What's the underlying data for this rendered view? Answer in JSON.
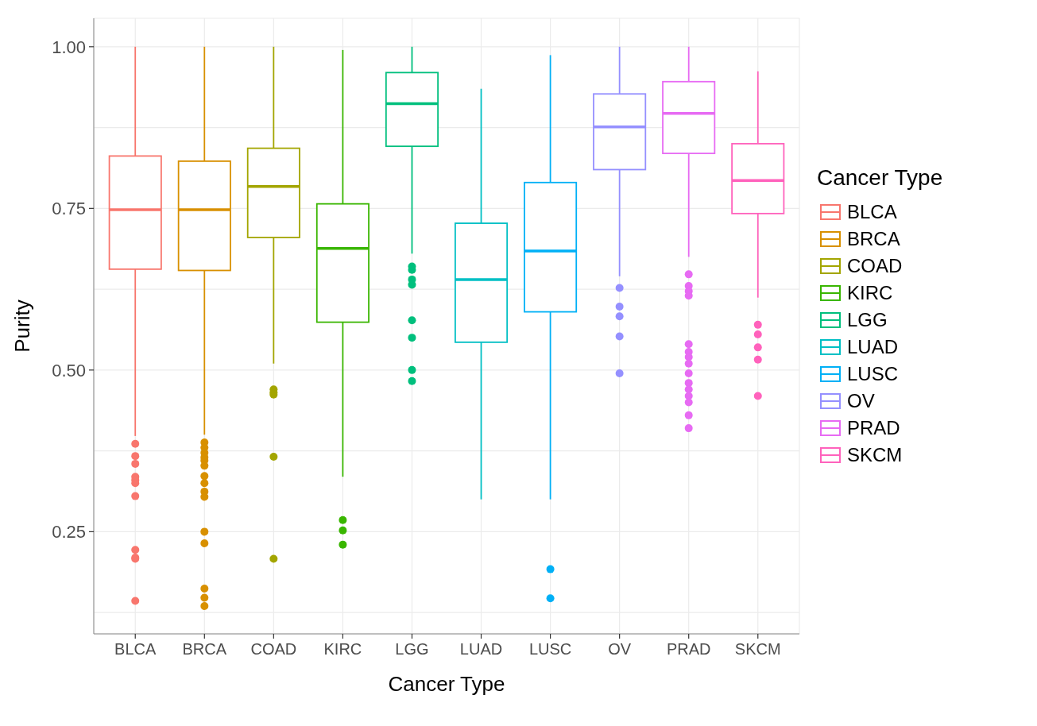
{
  "chart_data": {
    "type": "box",
    "xlabel": "Cancer Type",
    "ylabel": "Purity",
    "legend_title": "Cancer Type",
    "legend": "right",
    "grid": true,
    "categories": [
      "BLCA",
      "BRCA",
      "COAD",
      "KIRC",
      "LGG",
      "LUAD",
      "LUSC",
      "OV",
      "PRAD",
      "SKCM"
    ],
    "ylim": [
      0.092,
      1.044
    ],
    "yticks": [
      {
        "value": 0.125,
        "label": null
      },
      {
        "value": 0.25,
        "label": "0.25"
      },
      {
        "value": 0.375,
        "label": null
      },
      {
        "value": 0.5,
        "label": "0.50"
      },
      {
        "value": 0.625,
        "label": null
      },
      {
        "value": 0.75,
        "label": "0.75"
      },
      {
        "value": 0.875,
        "label": null
      },
      {
        "value": 1,
        "label": "1.00"
      }
    ],
    "series": [
      {
        "name": "BLCA",
        "color": "#f8766d",
        "boxes": [
          {
            "low": 0.398,
            "q1": 0.656,
            "median": 0.748,
            "q3": 0.831,
            "high": 1.0,
            "outliers": [
              0.386,
              0.367,
              0.355,
              0.335,
              0.33,
              0.325,
              0.305,
              0.222,
              0.21,
              0.208,
              0.143
            ]
          },
          null,
          null,
          null,
          null,
          null,
          null,
          null,
          null,
          null
        ]
      },
      {
        "name": "BRCA",
        "color": "#d89000",
        "boxes": [
          null,
          {
            "low": 0.4,
            "q1": 0.654,
            "median": 0.748,
            "q3": 0.823,
            "high": 1.0,
            "outliers": [
              0.388,
              0.38,
              0.372,
              0.365,
              0.36,
              0.352,
              0.336,
              0.325,
              0.312,
              0.304,
              0.25,
              0.232,
              0.162,
              0.148,
              0.135
            ]
          },
          null,
          null,
          null,
          null,
          null,
          null,
          null,
          null
        ]
      },
      {
        "name": "COAD",
        "color": "#a3a500",
        "boxes": [
          null,
          null,
          {
            "low": 0.51,
            "q1": 0.705,
            "median": 0.784,
            "q3": 0.843,
            "high": 1.0,
            "outliers": [
              0.47,
              0.465,
              0.462,
              0.366,
              0.208
            ]
          },
          null,
          null,
          null,
          null,
          null,
          null,
          null
        ]
      },
      {
        "name": "KIRC",
        "color": "#39b600",
        "boxes": [
          null,
          null,
          null,
          {
            "low": 0.335,
            "q1": 0.574,
            "median": 0.688,
            "q3": 0.757,
            "high": 0.995,
            "outliers": [
              0.268,
              0.252,
              0.23
            ]
          },
          null,
          null,
          null,
          null,
          null,
          null
        ]
      },
      {
        "name": "LGG",
        "color": "#00bf7d",
        "boxes": [
          null,
          null,
          null,
          null,
          {
            "low": 0.68,
            "q1": 0.846,
            "median": 0.912,
            "q3": 0.96,
            "high": 1.0,
            "outliers": [
              0.66,
              0.655,
              0.64,
              0.632,
              0.577,
              0.55,
              0.5,
              0.483
            ]
          },
          null,
          null,
          null,
          null,
          null
        ]
      },
      {
        "name": "LUAD",
        "color": "#00bfc4",
        "boxes": [
          null,
          null,
          null,
          null,
          null,
          {
            "low": 0.3,
            "q1": 0.543,
            "median": 0.64,
            "q3": 0.727,
            "high": 0.935
          },
          null,
          null,
          null,
          null
        ]
      },
      {
        "name": "LUSC",
        "color": "#00b0f6",
        "boxes": [
          null,
          null,
          null,
          null,
          null,
          null,
          {
            "low": 0.3,
            "q1": 0.59,
            "median": 0.684,
            "q3": 0.79,
            "high": 0.987,
            "outliers": [
              0.192,
              0.147
            ]
          },
          null,
          null,
          null
        ]
      },
      {
        "name": "OV",
        "color": "#9590ff",
        "boxes": [
          null,
          null,
          null,
          null,
          null,
          null,
          null,
          {
            "low": 0.645,
            "q1": 0.81,
            "median": 0.876,
            "q3": 0.927,
            "high": 1.0,
            "outliers": [
              0.627,
              0.598,
              0.583,
              0.552,
              0.495
            ]
          },
          null,
          null
        ]
      },
      {
        "name": "PRAD",
        "color": "#e76bf3",
        "boxes": [
          null,
          null,
          null,
          null,
          null,
          null,
          null,
          null,
          {
            "low": 0.675,
            "q1": 0.835,
            "median": 0.897,
            "q3": 0.946,
            "high": 1.0,
            "outliers": [
              0.648,
              0.63,
              0.622,
              0.615,
              0.54,
              0.528,
              0.52,
              0.51,
              0.495,
              0.48,
              0.47,
              0.46,
              0.45,
              0.43,
              0.41
            ]
          },
          null
        ]
      },
      {
        "name": "SKCM",
        "color": "#ff62bc",
        "boxes": [
          null,
          null,
          null,
          null,
          null,
          null,
          null,
          null,
          null,
          {
            "low": 0.612,
            "q1": 0.742,
            "median": 0.793,
            "q3": 0.85,
            "high": 0.962,
            "outliers": [
              0.57,
              0.555,
              0.535,
              0.516,
              0.46
            ]
          }
        ]
      }
    ]
  }
}
